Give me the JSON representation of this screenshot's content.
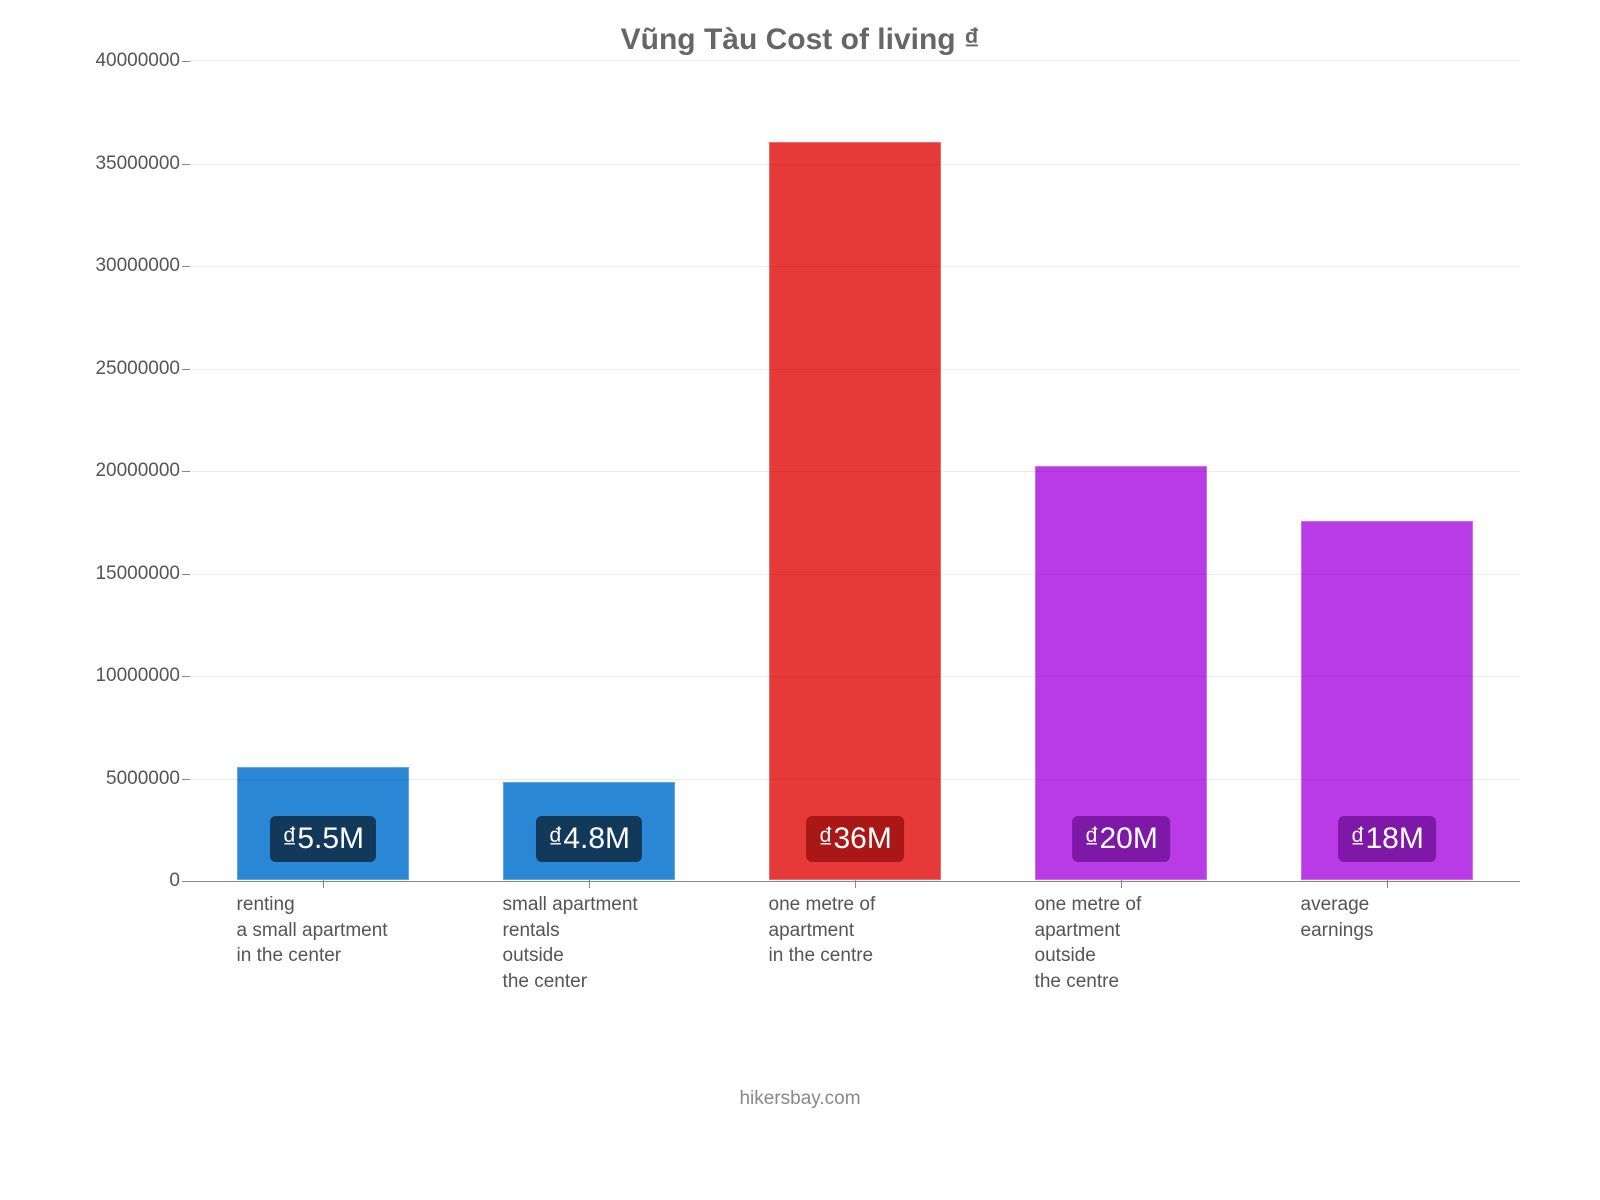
{
  "chart": {
    "type": "bar",
    "title": "Vũng Tàu Cost of living ₫",
    "title_fontsize": 30,
    "title_color": "#666666",
    "background_color": "#ffffff",
    "grid_color": "rgba(0,0,0,0.08)",
    "axis_color": "#888888",
    "tick_label_color": "#555555",
    "tick_fontsize": 19,
    "ylim": [
      0,
      40000000
    ],
    "ytick_step": 5000000,
    "yticks": [
      0,
      5000000,
      10000000,
      15000000,
      20000000,
      25000000,
      30000000,
      35000000,
      40000000
    ],
    "bar_width": 0.65,
    "bars": [
      {
        "category": "renting\na small apartment\nin the center",
        "value": 5500000,
        "color": "#2a87d6",
        "label": "₫5.5M",
        "label_bg": "#13395a"
      },
      {
        "category": "small apartment\nrentals\noutside\nthe center",
        "value": 4800000,
        "color": "#2a87d6",
        "label": "₫4.8M",
        "label_bg": "#13395a"
      },
      {
        "category": "one metre of apartment\nin the centre",
        "value": 36000000,
        "color": "#e63a3a",
        "label": "₫36M",
        "label_bg": "#aa1717"
      },
      {
        "category": "one metre of apartment\noutside\nthe centre",
        "value": 20200000,
        "color": "#b93be6",
        "label": "₫20M",
        "label_bg": "#7d19a6"
      },
      {
        "category": "average\nearnings",
        "value": 17500000,
        "color": "#b93be6",
        "label": "₫18M",
        "label_bg": "#7d19a6"
      }
    ],
    "bar_label_fontsize": 30,
    "bar_label_color": "#ffffff",
    "credit": "hikersbay.com",
    "credit_color": "#888888",
    "credit_fontsize": 19
  }
}
